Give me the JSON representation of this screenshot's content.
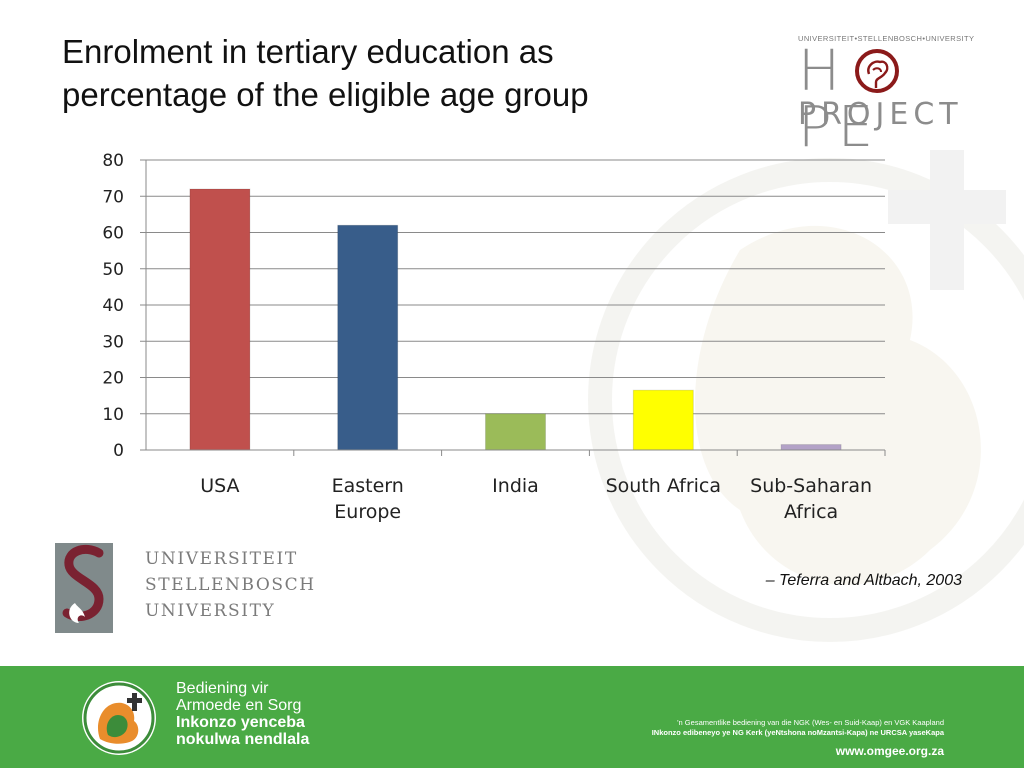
{
  "slide": {
    "title": "Enrolment in tertiary education as\npercentage of the eligible age group",
    "citation": "– Teferra and Altbach, 2003"
  },
  "hope_logo": {
    "top_text": "UNIVERSITEIT•STELLENBOSCH•UNIVERSITY",
    "word_left": "H",
    "word_right": "PE",
    "word_bottom": "PROJECT"
  },
  "university_logo": {
    "lines": [
      "UNIVERSITEIT",
      "STELLENBOSCH",
      "UNIVERSITY"
    ]
  },
  "footer": {
    "line1": "Bediening vir",
    "line2": "Armoede en Sorg",
    "line3": "Inkonzo yenceba",
    "line4": "nokulwa nendlala",
    "small1": "'n Gesamentlike bediening van die NGK (Wes- en Suid-Kaap) en VGK Kaapland",
    "small2": "INkonzo edibeneyo ye NG Kerk (yeNtshona noMzantsi-Kapa) ne URCSA yaseKapa",
    "url": "www.omgee.org.za"
  },
  "chart_data": {
    "type": "bar",
    "categories": [
      "USA",
      "Eastern Europe",
      "India",
      "South Africa",
      "Sub-Saharan Africa"
    ],
    "category_lines": [
      [
        "USA"
      ],
      [
        "Eastern",
        "Europe"
      ],
      [
        "India"
      ],
      [
        "South Africa"
      ],
      [
        "Sub-Saharan",
        "Africa"
      ]
    ],
    "values": [
      72,
      62,
      10,
      16.5,
      1.5
    ],
    "colors": [
      "#c0504d",
      "#385d8a",
      "#9bbb59",
      "#ffff00",
      "#b3a2c7"
    ],
    "ylim": [
      0,
      80
    ],
    "yticks": [
      0,
      10,
      20,
      30,
      40,
      50,
      60,
      70,
      80
    ],
    "grid": true,
    "legend": "none",
    "title": "",
    "xlabel": "",
    "ylabel": ""
  },
  "colors": {
    "footer_green": "#4aaa45",
    "logo_grey": "#8c8c8c",
    "accent_red": "#8b1a1a"
  }
}
